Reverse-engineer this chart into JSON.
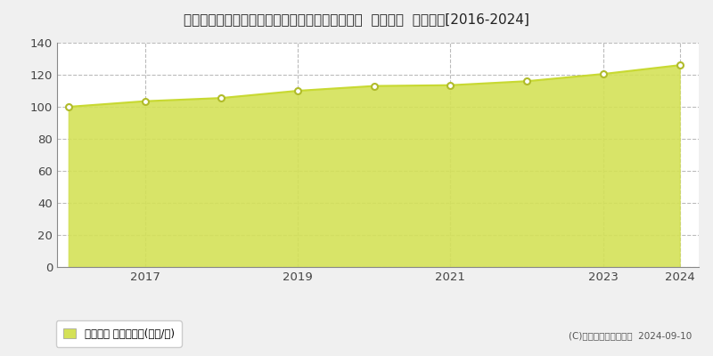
{
  "title": "神奈川県川崎市高津区久本２丁目２８４番１１外  地価公示  地価推移[2016-2024]",
  "years": [
    2016,
    2017,
    2018,
    2019,
    2020,
    2021,
    2022,
    2023,
    2024
  ],
  "values": [
    100,
    103.5,
    105.5,
    110,
    113,
    113.5,
    116,
    120.5,
    126
  ],
  "ylim": [
    0,
    140
  ],
  "yticks": [
    0,
    20,
    40,
    60,
    80,
    100,
    120,
    140
  ],
  "xticks": [
    2017,
    2019,
    2021,
    2023,
    2024
  ],
  "line_color": "#c8d932",
  "fill_color": "#d4e157",
  "fill_alpha": 0.9,
  "marker_color": "white",
  "marker_edge_color": "#b0bb2a",
  "bg_color": "#f0f0f0",
  "plot_bg_color": "#ffffff",
  "grid_color": "#bbbbbb",
  "title_fontsize": 11,
  "legend_label": "地価公示 平均坪単価(万円/坪)",
  "credit_text": "(C)土地価格ドットコム  2024-09-10"
}
